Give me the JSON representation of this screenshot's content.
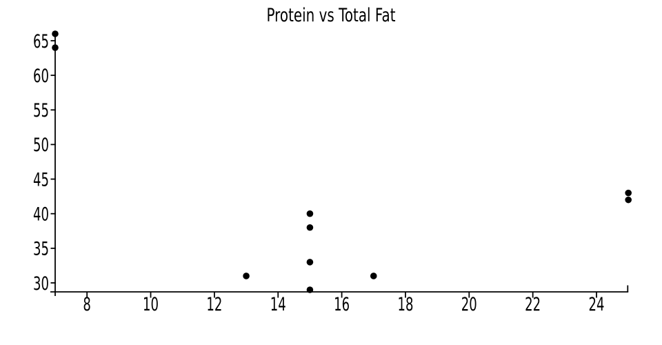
{
  "chart_data": {
    "type": "scatter",
    "title": "Protein vs Total Fat",
    "xlabel": "",
    "ylabel": "",
    "xlim": [
      7,
      25
    ],
    "ylim": [
      28.7,
      66.3
    ],
    "x_ticks": [
      8,
      10,
      12,
      14,
      16,
      18,
      20,
      22,
      24
    ],
    "y_ticks": [
      30,
      35,
      40,
      45,
      50,
      55,
      60,
      65
    ],
    "points": [
      {
        "x": 7,
        "y": 66
      },
      {
        "x": 7,
        "y": 64
      },
      {
        "x": 13,
        "y": 31
      },
      {
        "x": 15,
        "y": 29
      },
      {
        "x": 15,
        "y": 33
      },
      {
        "x": 15,
        "y": 38
      },
      {
        "x": 15,
        "y": 40
      },
      {
        "x": 17,
        "y": 31
      },
      {
        "x": 25,
        "y": 42
      },
      {
        "x": 25,
        "y": 43
      }
    ],
    "grid": false,
    "legend": false,
    "tick_direction": "out",
    "spines": [
      "left",
      "bottom"
    ],
    "marker": {
      "shape": "circle",
      "radius_px": 4.8
    },
    "colors": {
      "marker": "#000000",
      "axis": "#000000",
      "text": "#000000",
      "background": "#ffffff"
    }
  }
}
